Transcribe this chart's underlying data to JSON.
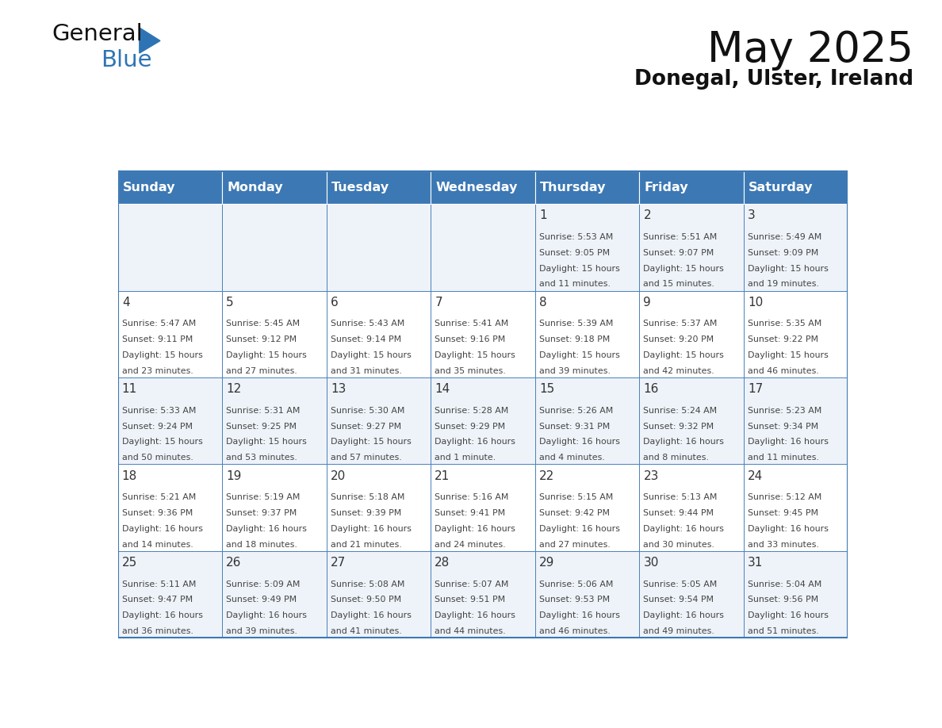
{
  "title": "May 2025",
  "subtitle": "Donegal, Ulster, Ireland",
  "header_bg": "#3C78B4",
  "header_text_color": "#FFFFFF",
  "border_color": "#3C78B4",
  "text_color": "#333333",
  "days_of_week": [
    "Sunday",
    "Monday",
    "Tuesday",
    "Wednesday",
    "Thursday",
    "Friday",
    "Saturday"
  ],
  "weeks": [
    [
      {
        "day": "",
        "info": ""
      },
      {
        "day": "",
        "info": ""
      },
      {
        "day": "",
        "info": ""
      },
      {
        "day": "",
        "info": ""
      },
      {
        "day": "1",
        "info": "Sunrise: 5:53 AM\nSunset: 9:05 PM\nDaylight: 15 hours\nand 11 minutes."
      },
      {
        "day": "2",
        "info": "Sunrise: 5:51 AM\nSunset: 9:07 PM\nDaylight: 15 hours\nand 15 minutes."
      },
      {
        "day": "3",
        "info": "Sunrise: 5:49 AM\nSunset: 9:09 PM\nDaylight: 15 hours\nand 19 minutes."
      }
    ],
    [
      {
        "day": "4",
        "info": "Sunrise: 5:47 AM\nSunset: 9:11 PM\nDaylight: 15 hours\nand 23 minutes."
      },
      {
        "day": "5",
        "info": "Sunrise: 5:45 AM\nSunset: 9:12 PM\nDaylight: 15 hours\nand 27 minutes."
      },
      {
        "day": "6",
        "info": "Sunrise: 5:43 AM\nSunset: 9:14 PM\nDaylight: 15 hours\nand 31 minutes."
      },
      {
        "day": "7",
        "info": "Sunrise: 5:41 AM\nSunset: 9:16 PM\nDaylight: 15 hours\nand 35 minutes."
      },
      {
        "day": "8",
        "info": "Sunrise: 5:39 AM\nSunset: 9:18 PM\nDaylight: 15 hours\nand 39 minutes."
      },
      {
        "day": "9",
        "info": "Sunrise: 5:37 AM\nSunset: 9:20 PM\nDaylight: 15 hours\nand 42 minutes."
      },
      {
        "day": "10",
        "info": "Sunrise: 5:35 AM\nSunset: 9:22 PM\nDaylight: 15 hours\nand 46 minutes."
      }
    ],
    [
      {
        "day": "11",
        "info": "Sunrise: 5:33 AM\nSunset: 9:24 PM\nDaylight: 15 hours\nand 50 minutes."
      },
      {
        "day": "12",
        "info": "Sunrise: 5:31 AM\nSunset: 9:25 PM\nDaylight: 15 hours\nand 53 minutes."
      },
      {
        "day": "13",
        "info": "Sunrise: 5:30 AM\nSunset: 9:27 PM\nDaylight: 15 hours\nand 57 minutes."
      },
      {
        "day": "14",
        "info": "Sunrise: 5:28 AM\nSunset: 9:29 PM\nDaylight: 16 hours\nand 1 minute."
      },
      {
        "day": "15",
        "info": "Sunrise: 5:26 AM\nSunset: 9:31 PM\nDaylight: 16 hours\nand 4 minutes."
      },
      {
        "day": "16",
        "info": "Sunrise: 5:24 AM\nSunset: 9:32 PM\nDaylight: 16 hours\nand 8 minutes."
      },
      {
        "day": "17",
        "info": "Sunrise: 5:23 AM\nSunset: 9:34 PM\nDaylight: 16 hours\nand 11 minutes."
      }
    ],
    [
      {
        "day": "18",
        "info": "Sunrise: 5:21 AM\nSunset: 9:36 PM\nDaylight: 16 hours\nand 14 minutes."
      },
      {
        "day": "19",
        "info": "Sunrise: 5:19 AM\nSunset: 9:37 PM\nDaylight: 16 hours\nand 18 minutes."
      },
      {
        "day": "20",
        "info": "Sunrise: 5:18 AM\nSunset: 9:39 PM\nDaylight: 16 hours\nand 21 minutes."
      },
      {
        "day": "21",
        "info": "Sunrise: 5:16 AM\nSunset: 9:41 PM\nDaylight: 16 hours\nand 24 minutes."
      },
      {
        "day": "22",
        "info": "Sunrise: 5:15 AM\nSunset: 9:42 PM\nDaylight: 16 hours\nand 27 minutes."
      },
      {
        "day": "23",
        "info": "Sunrise: 5:13 AM\nSunset: 9:44 PM\nDaylight: 16 hours\nand 30 minutes."
      },
      {
        "day": "24",
        "info": "Sunrise: 5:12 AM\nSunset: 9:45 PM\nDaylight: 16 hours\nand 33 minutes."
      }
    ],
    [
      {
        "day": "25",
        "info": "Sunrise: 5:11 AM\nSunset: 9:47 PM\nDaylight: 16 hours\nand 36 minutes."
      },
      {
        "day": "26",
        "info": "Sunrise: 5:09 AM\nSunset: 9:49 PM\nDaylight: 16 hours\nand 39 minutes."
      },
      {
        "day": "27",
        "info": "Sunrise: 5:08 AM\nSunset: 9:50 PM\nDaylight: 16 hours\nand 41 minutes."
      },
      {
        "day": "28",
        "info": "Sunrise: 5:07 AM\nSunset: 9:51 PM\nDaylight: 16 hours\nand 44 minutes."
      },
      {
        "day": "29",
        "info": "Sunrise: 5:06 AM\nSunset: 9:53 PM\nDaylight: 16 hours\nand 46 minutes."
      },
      {
        "day": "30",
        "info": "Sunrise: 5:05 AM\nSunset: 9:54 PM\nDaylight: 16 hours\nand 49 minutes."
      },
      {
        "day": "31",
        "info": "Sunrise: 5:04 AM\nSunset: 9:56 PM\nDaylight: 16 hours\nand 51 minutes."
      }
    ]
  ]
}
